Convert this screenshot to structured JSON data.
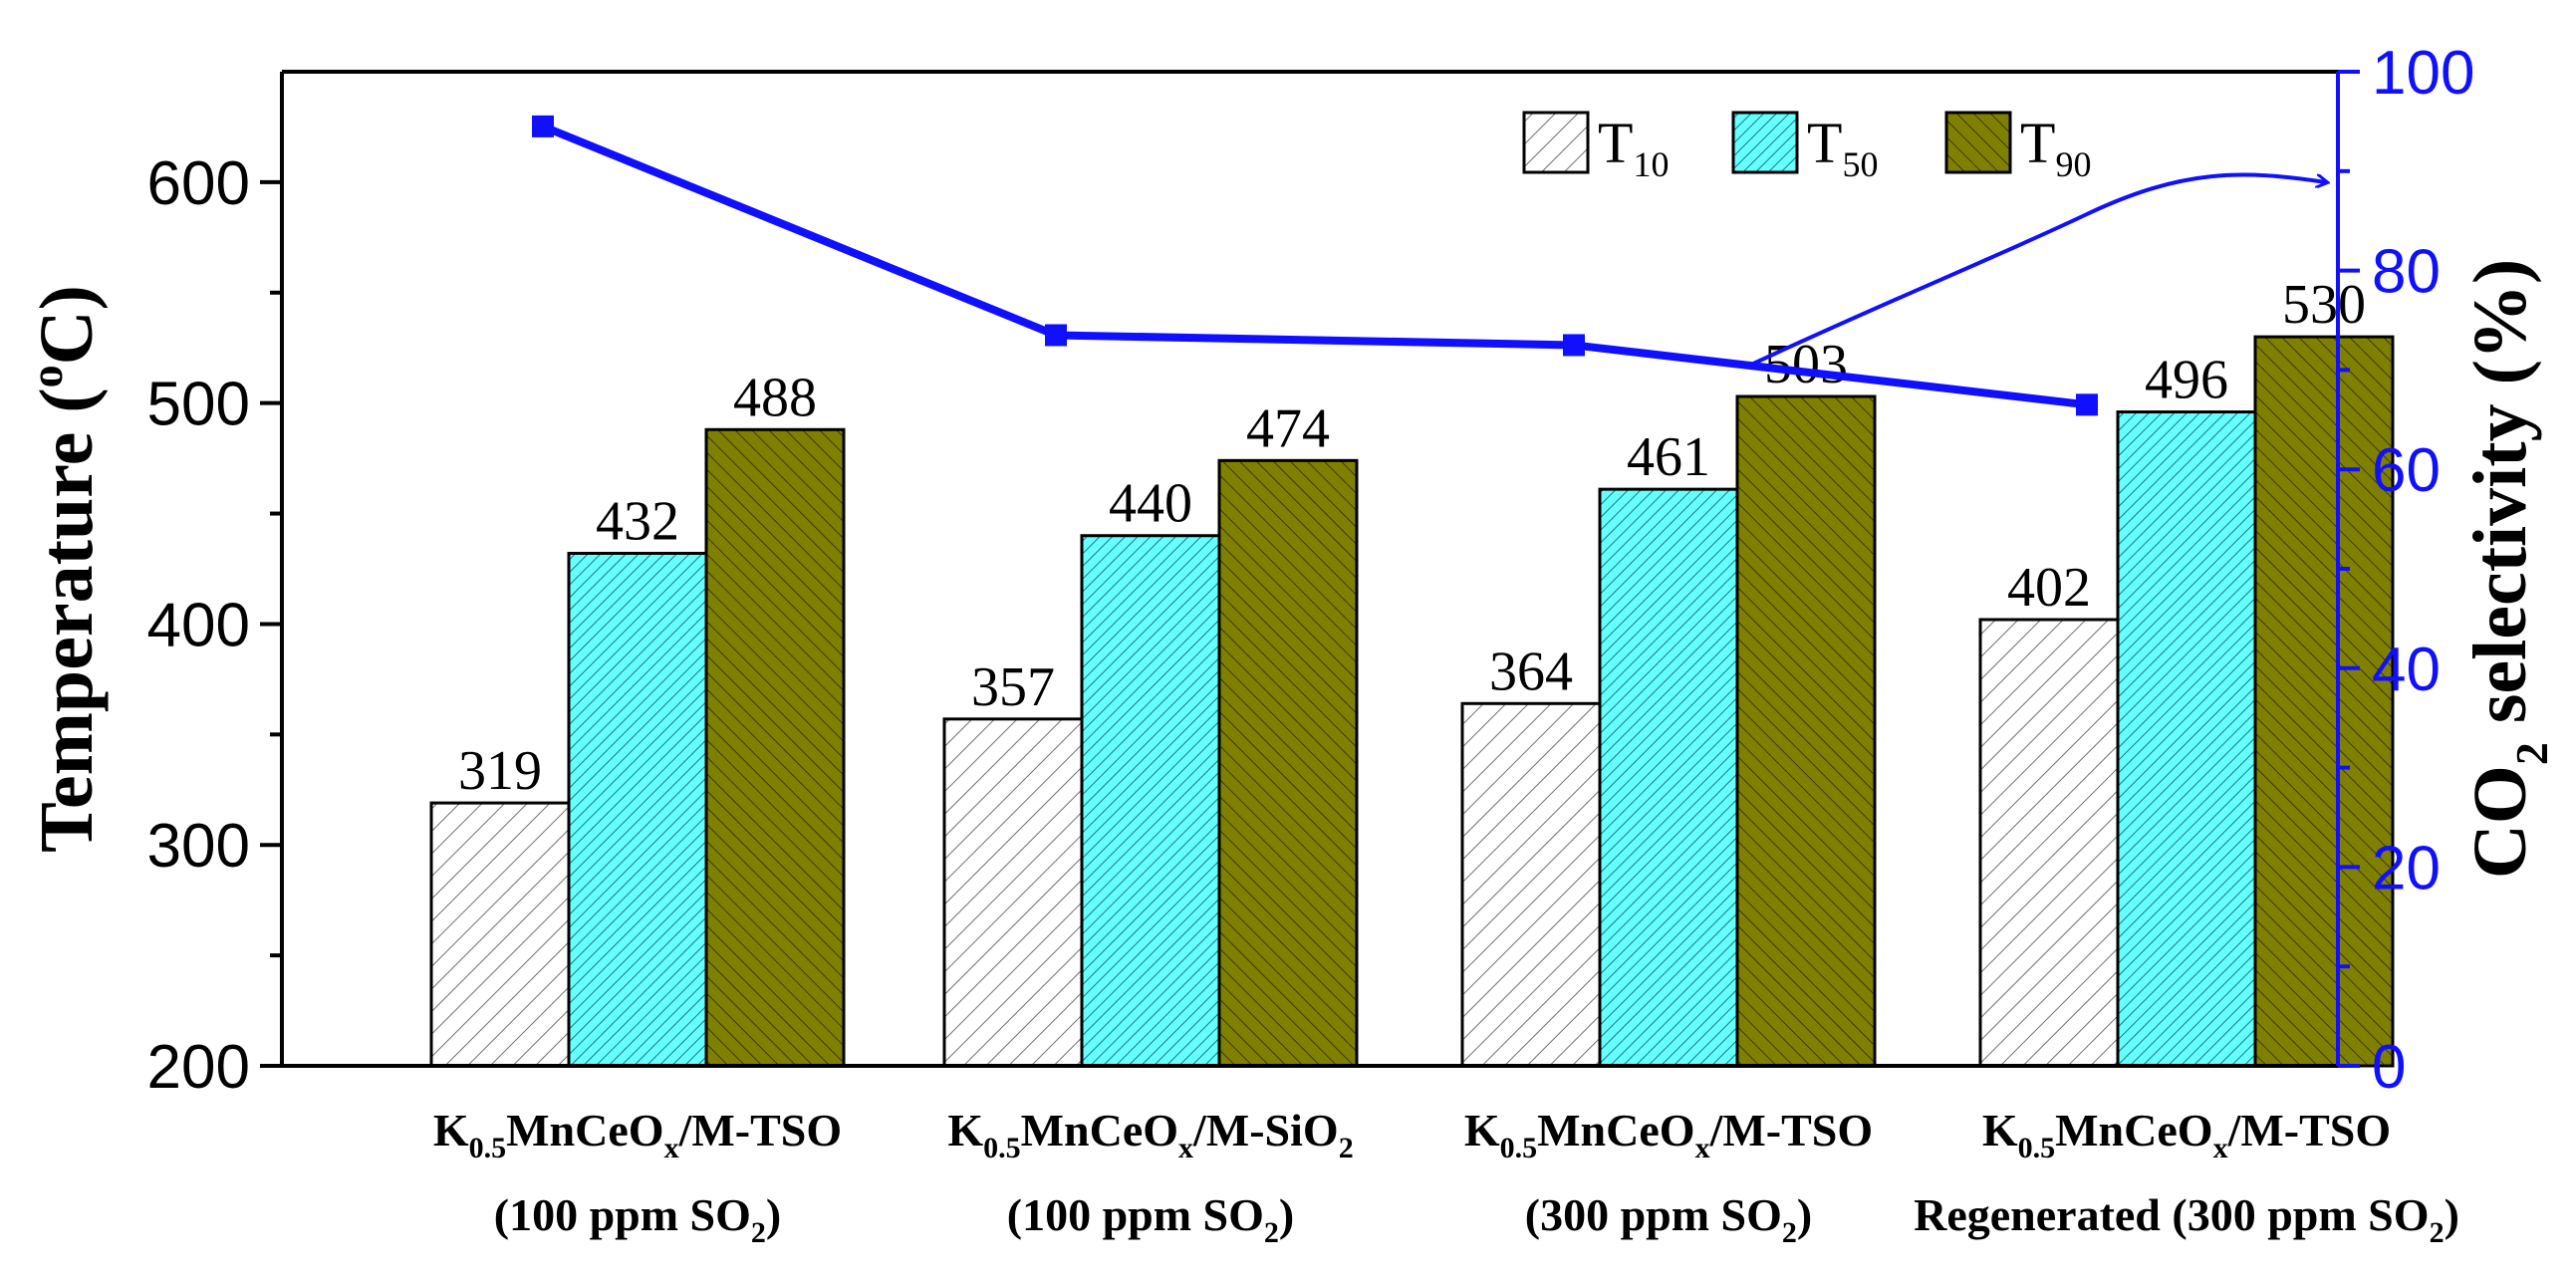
{
  "chart_data": {
    "type": "bar",
    "categories": [
      {
        "line1_main": "K",
        "line1_sub": "0.5",
        "line1_mid": "MnCeO",
        "line1_sub2": "x",
        "line1_end": "/M-TSO",
        "line2_pre": "(100 ppm SO",
        "line2_sub": "2",
        "line2_post": ")"
      },
      {
        "line1_main": "K",
        "line1_sub": "0.5",
        "line1_mid": "MnCeO",
        "line1_sub2": "x",
        "line1_end": "/M-SiO",
        "line1_sub3": "2",
        "line2_pre": "(100 ppm SO",
        "line2_sub": "2",
        "line2_post": ")"
      },
      {
        "line1_main": "K",
        "line1_sub": "0.5",
        "line1_mid": "MnCeO",
        "line1_sub2": "x",
        "line1_end": "/M-TSO",
        "line2_pre": "(300 ppm SO",
        "line2_sub": "2",
        "line2_post": ")"
      },
      {
        "line1_main": "K",
        "line1_sub": "0.5",
        "line1_mid": "MnCeO",
        "line1_sub2": "x",
        "line1_end": "/M-TSO",
        "line2_pre": "Regenerated (300 ppm SO",
        "line2_sub": "2",
        "line2_post": ")"
      }
    ],
    "series": [
      {
        "name": "T",
        "sub": "10",
        "values": [
          319,
          357,
          364,
          402
        ],
        "fill": "#ffffff",
        "hatch": "#707070"
      },
      {
        "name": "T",
        "sub": "50",
        "values": [
          432,
          440,
          461,
          496
        ],
        "fill": "#66ffff",
        "hatch": "#1a7a7a"
      },
      {
        "name": "T",
        "sub": "90",
        "values": [
          488,
          474,
          503,
          530
        ],
        "fill": "#808000",
        "hatch": "#3a3a00"
      }
    ],
    "line_series": {
      "name": "CO2 selectivity",
      "values": [
        94.5,
        73.5,
        72.5,
        66.5
      ],
      "color": "#1010ff"
    },
    "data_labels": [
      "319",
      "432",
      "488",
      "357",
      "440",
      "474",
      "364",
      "461",
      "503",
      "402",
      "496",
      "530"
    ],
    "y_left": {
      "label_pre": "Temperature (",
      "label_sup": "o",
      "label_post": "C)",
      "ylim": [
        200,
        650
      ],
      "ticks": [
        "200",
        "300",
        "400",
        "500",
        "600"
      ],
      "tick_values": [
        200,
        300,
        400,
        500,
        600
      ]
    },
    "y_right": {
      "label_pre": "CO",
      "label_sub": "2",
      "label_post": " selectivity (%)",
      "ylim": [
        0,
        100
      ],
      "ticks": [
        "0",
        "20",
        "40",
        "60",
        "80",
        "100"
      ],
      "tick_values": [
        0,
        20,
        40,
        60,
        80,
        100
      ],
      "color": "#1010ff"
    },
    "legend": "top-right"
  }
}
